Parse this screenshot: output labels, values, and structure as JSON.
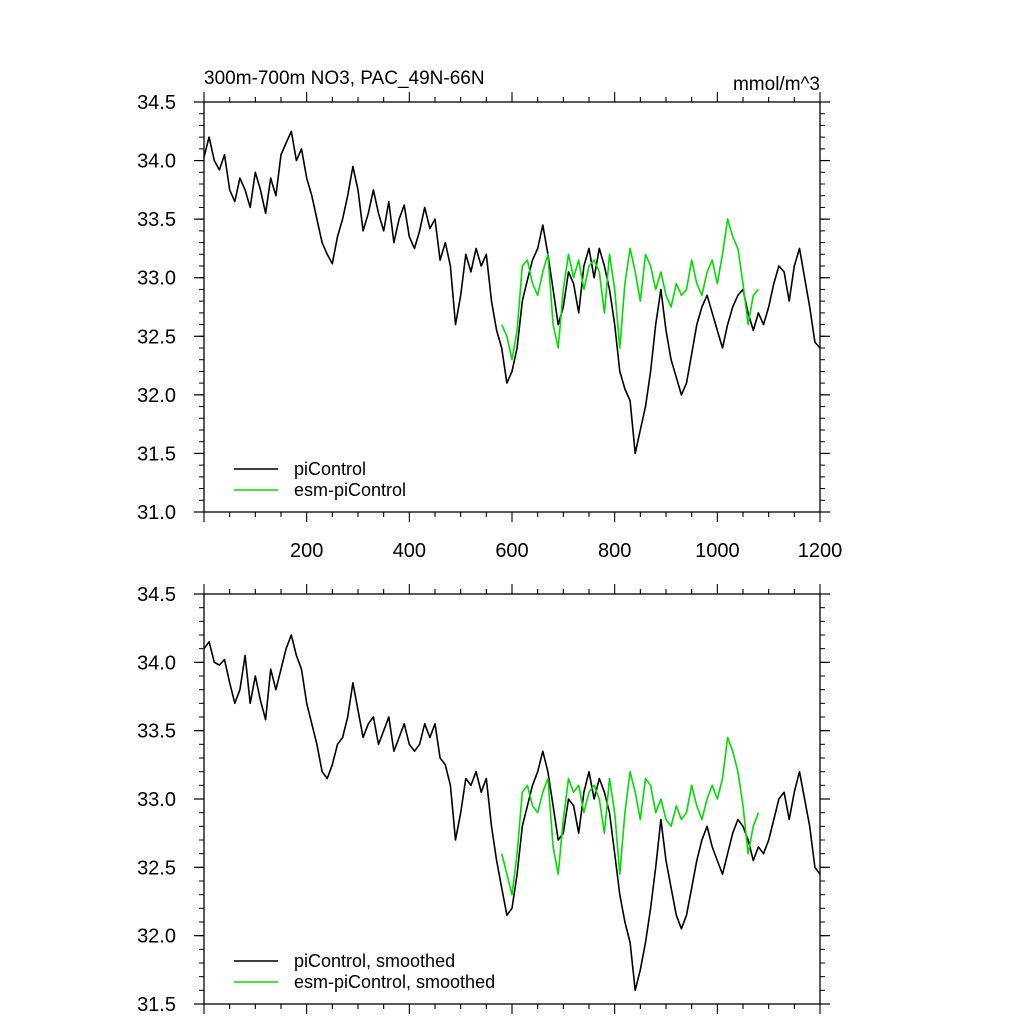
{
  "colors": {
    "piControl": "#000000",
    "esm_piControl": "#00dd00",
    "axes": "#000000",
    "background": "#ffffff"
  },
  "chart_data": [
    {
      "type": "line",
      "title": "300m-700m NO3, PAC_49N-66N",
      "units": "mmol/m^3",
      "xlim": [
        0,
        1200
      ],
      "ylim": [
        31.0,
        34.5
      ],
      "xticks": [
        200,
        400,
        600,
        800,
        1000,
        1200
      ],
      "xtick_labels": [
        "200",
        "400",
        "600",
        "800",
        "1000",
        "1200"
      ],
      "yticks": [
        31.0,
        31.5,
        32.0,
        32.5,
        33.0,
        33.5,
        34.0,
        34.5
      ],
      "ytick_labels": [
        "31.0",
        "31.5",
        "32.0",
        "32.5",
        "33.0",
        "33.5",
        "34.0",
        "34.5"
      ],
      "legend": {
        "placement": "bottom-left",
        "entries": [
          "piControl",
          "esm-piControl"
        ]
      },
      "series": [
        {
          "name": "piControl",
          "x": [
            0,
            10,
            20,
            30,
            40,
            50,
            60,
            70,
            80,
            90,
            100,
            110,
            120,
            130,
            140,
            150,
            160,
            170,
            180,
            190,
            200,
            210,
            220,
            230,
            240,
            250,
            260,
            270,
            280,
            290,
            300,
            310,
            320,
            330,
            340,
            350,
            360,
            370,
            380,
            390,
            400,
            410,
            420,
            430,
            440,
            450,
            460,
            470,
            480,
            490,
            500,
            510,
            520,
            530,
            540,
            550,
            560,
            570,
            580,
            590,
            600,
            610,
            620,
            630,
            640,
            650,
            660,
            670,
            680,
            690,
            700,
            710,
            720,
            730,
            740,
            750,
            760,
            770,
            780,
            790,
            800,
            810,
            820,
            830,
            840,
            850,
            860,
            870,
            880,
            890,
            900,
            910,
            920,
            930,
            940,
            950,
            960,
            970,
            980,
            990,
            1000,
            1010,
            1020,
            1030,
            1040,
            1050,
            1060,
            1070,
            1080,
            1090,
            1100,
            1110,
            1120,
            1130,
            1140,
            1150,
            1160,
            1170,
            1180,
            1190,
            1200
          ],
          "values": [
            34.03,
            34.2,
            34.0,
            33.92,
            34.05,
            33.75,
            33.65,
            33.85,
            33.75,
            33.6,
            33.9,
            33.75,
            33.55,
            33.85,
            33.7,
            34.05,
            34.15,
            34.25,
            34.0,
            34.1,
            33.85,
            33.7,
            33.5,
            33.3,
            33.2,
            33.12,
            33.35,
            33.5,
            33.7,
            33.95,
            33.75,
            33.4,
            33.55,
            33.75,
            33.55,
            33.4,
            33.65,
            33.3,
            33.5,
            33.62,
            33.35,
            33.25,
            33.4,
            33.6,
            33.42,
            33.5,
            33.15,
            33.3,
            33.1,
            32.6,
            32.85,
            33.2,
            33.05,
            33.25,
            33.1,
            33.2,
            32.8,
            32.55,
            32.4,
            32.1,
            32.2,
            32.4,
            32.8,
            32.98,
            33.15,
            33.25,
            33.45,
            33.2,
            32.9,
            32.6,
            32.75,
            33.05,
            32.95,
            32.7,
            33.1,
            33.25,
            33.0,
            33.25,
            33.1,
            32.9,
            32.6,
            32.2,
            32.05,
            31.95,
            31.5,
            31.7,
            31.9,
            32.2,
            32.6,
            32.9,
            32.55,
            32.3,
            32.15,
            32.0,
            32.1,
            32.35,
            32.6,
            32.75,
            32.85,
            32.7,
            32.55,
            32.4,
            32.6,
            32.75,
            32.85,
            32.9,
            32.7,
            32.55,
            32.7,
            32.6,
            32.75,
            32.95,
            33.1,
            33.05,
            32.8,
            33.1,
            33.25,
            33.0,
            32.75,
            32.45,
            32.4
          ],
          "color": "#000000"
        },
        {
          "name": "esm-piControl",
          "x": [
            580,
            590,
            600,
            610,
            620,
            630,
            640,
            650,
            660,
            670,
            680,
            690,
            700,
            710,
            720,
            730,
            740,
            750,
            760,
            770,
            780,
            790,
            800,
            810,
            820,
            830,
            840,
            850,
            860,
            870,
            880,
            890,
            900,
            910,
            920,
            930,
            940,
            950,
            960,
            970,
            980,
            990,
            1000,
            1010,
            1020,
            1030,
            1040,
            1050,
            1060,
            1070,
            1080
          ],
          "values": [
            32.6,
            32.5,
            32.3,
            32.55,
            33.1,
            33.15,
            32.95,
            32.85,
            33.05,
            33.2,
            32.6,
            32.4,
            32.9,
            33.2,
            33.0,
            33.15,
            32.9,
            33.1,
            33.15,
            33.05,
            32.7,
            33.2,
            32.9,
            32.4,
            32.95,
            33.25,
            33.05,
            32.8,
            33.2,
            33.1,
            32.9,
            33.05,
            32.85,
            32.75,
            32.95,
            32.85,
            32.9,
            33.15,
            32.95,
            32.85,
            33.05,
            33.15,
            32.95,
            33.2,
            33.5,
            33.35,
            33.25,
            32.95,
            32.6,
            32.85,
            32.9
          ],
          "color": "#00dd00"
        }
      ]
    },
    {
      "type": "line",
      "xlim": [
        0,
        1200
      ],
      "ylim": [
        31.5,
        34.5
      ],
      "yticks": [
        31.5,
        32.0,
        32.5,
        33.0,
        33.5,
        34.0,
        34.5
      ],
      "ytick_labels": [
        "31.5",
        "32.0",
        "32.5",
        "33.0",
        "33.5",
        "34.0",
        "34.5"
      ],
      "legend": {
        "placement": "bottom-left",
        "entries": [
          "piControl, smoothed",
          "esm-piControl, smoothed"
        ]
      },
      "series": [
        {
          "name": "piControl, smoothed",
          "x": [
            0,
            10,
            20,
            30,
            40,
            50,
            60,
            70,
            80,
            90,
            100,
            110,
            120,
            130,
            140,
            150,
            160,
            170,
            180,
            190,
            200,
            210,
            220,
            230,
            240,
            250,
            260,
            270,
            280,
            290,
            300,
            310,
            320,
            330,
            340,
            350,
            360,
            370,
            380,
            390,
            400,
            410,
            420,
            430,
            440,
            450,
            460,
            470,
            480,
            490,
            500,
            510,
            520,
            530,
            540,
            550,
            560,
            570,
            580,
            590,
            600,
            610,
            620,
            630,
            640,
            650,
            660,
            670,
            680,
            690,
            700,
            710,
            720,
            730,
            740,
            750,
            760,
            770,
            780,
            790,
            800,
            810,
            820,
            830,
            840,
            850,
            860,
            870,
            880,
            890,
            900,
            910,
            920,
            930,
            940,
            950,
            960,
            970,
            980,
            990,
            1000,
            1010,
            1020,
            1030,
            1040,
            1050,
            1060,
            1070,
            1080,
            1090,
            1100,
            1110,
            1120,
            1130,
            1140,
            1150,
            1160,
            1170,
            1180,
            1190,
            1200
          ],
          "values": [
            34.1,
            34.15,
            34.0,
            33.98,
            34.02,
            33.85,
            33.7,
            33.8,
            34.05,
            33.7,
            33.9,
            33.72,
            33.58,
            33.95,
            33.8,
            33.95,
            34.1,
            34.2,
            34.05,
            33.95,
            33.7,
            33.55,
            33.4,
            33.2,
            33.15,
            33.25,
            33.4,
            33.45,
            33.6,
            33.85,
            33.65,
            33.45,
            33.55,
            33.6,
            33.4,
            33.5,
            33.6,
            33.35,
            33.45,
            33.55,
            33.4,
            33.35,
            33.4,
            33.55,
            33.45,
            33.55,
            33.3,
            33.25,
            33.1,
            32.7,
            32.9,
            33.15,
            33.1,
            33.2,
            33.05,
            33.15,
            32.8,
            32.55,
            32.35,
            32.15,
            32.2,
            32.45,
            32.8,
            32.95,
            33.1,
            33.2,
            33.35,
            33.2,
            32.95,
            32.7,
            32.75,
            33.0,
            32.95,
            32.75,
            33.05,
            33.2,
            33.0,
            33.15,
            33.05,
            32.9,
            32.6,
            32.3,
            32.1,
            31.95,
            31.6,
            31.75,
            31.95,
            32.2,
            32.5,
            32.85,
            32.55,
            32.35,
            32.15,
            32.05,
            32.15,
            32.35,
            32.55,
            32.7,
            32.8,
            32.65,
            32.55,
            32.45,
            32.6,
            32.75,
            32.85,
            32.8,
            32.7,
            32.55,
            32.65,
            32.6,
            32.7,
            32.85,
            33.0,
            33.05,
            32.85,
            33.05,
            33.2,
            33.0,
            32.8,
            32.5,
            32.45
          ],
          "color": "#000000"
        },
        {
          "name": "esm-piControl, smoothed",
          "x": [
            580,
            590,
            600,
            610,
            620,
            630,
            640,
            650,
            660,
            670,
            680,
            690,
            700,
            710,
            720,
            730,
            740,
            750,
            760,
            770,
            780,
            790,
            800,
            810,
            820,
            830,
            840,
            850,
            860,
            870,
            880,
            890,
            900,
            910,
            920,
            930,
            940,
            950,
            960,
            970,
            980,
            990,
            1000,
            1010,
            1020,
            1030,
            1040,
            1050,
            1060,
            1070,
            1080
          ],
          "values": [
            32.6,
            32.45,
            32.3,
            32.6,
            33.05,
            33.1,
            32.95,
            32.9,
            33.05,
            33.15,
            32.65,
            32.45,
            32.85,
            33.15,
            33.05,
            33.1,
            32.9,
            33.05,
            33.1,
            33.0,
            32.75,
            33.15,
            32.9,
            32.45,
            32.9,
            33.2,
            33.05,
            32.85,
            33.15,
            33.1,
            32.9,
            33.0,
            32.85,
            32.8,
            32.95,
            32.85,
            32.9,
            33.1,
            32.95,
            32.85,
            33.0,
            33.1,
            33.0,
            33.15,
            33.45,
            33.35,
            33.2,
            32.95,
            32.6,
            32.8,
            32.9
          ],
          "color": "#00dd00"
        }
      ]
    }
  ]
}
